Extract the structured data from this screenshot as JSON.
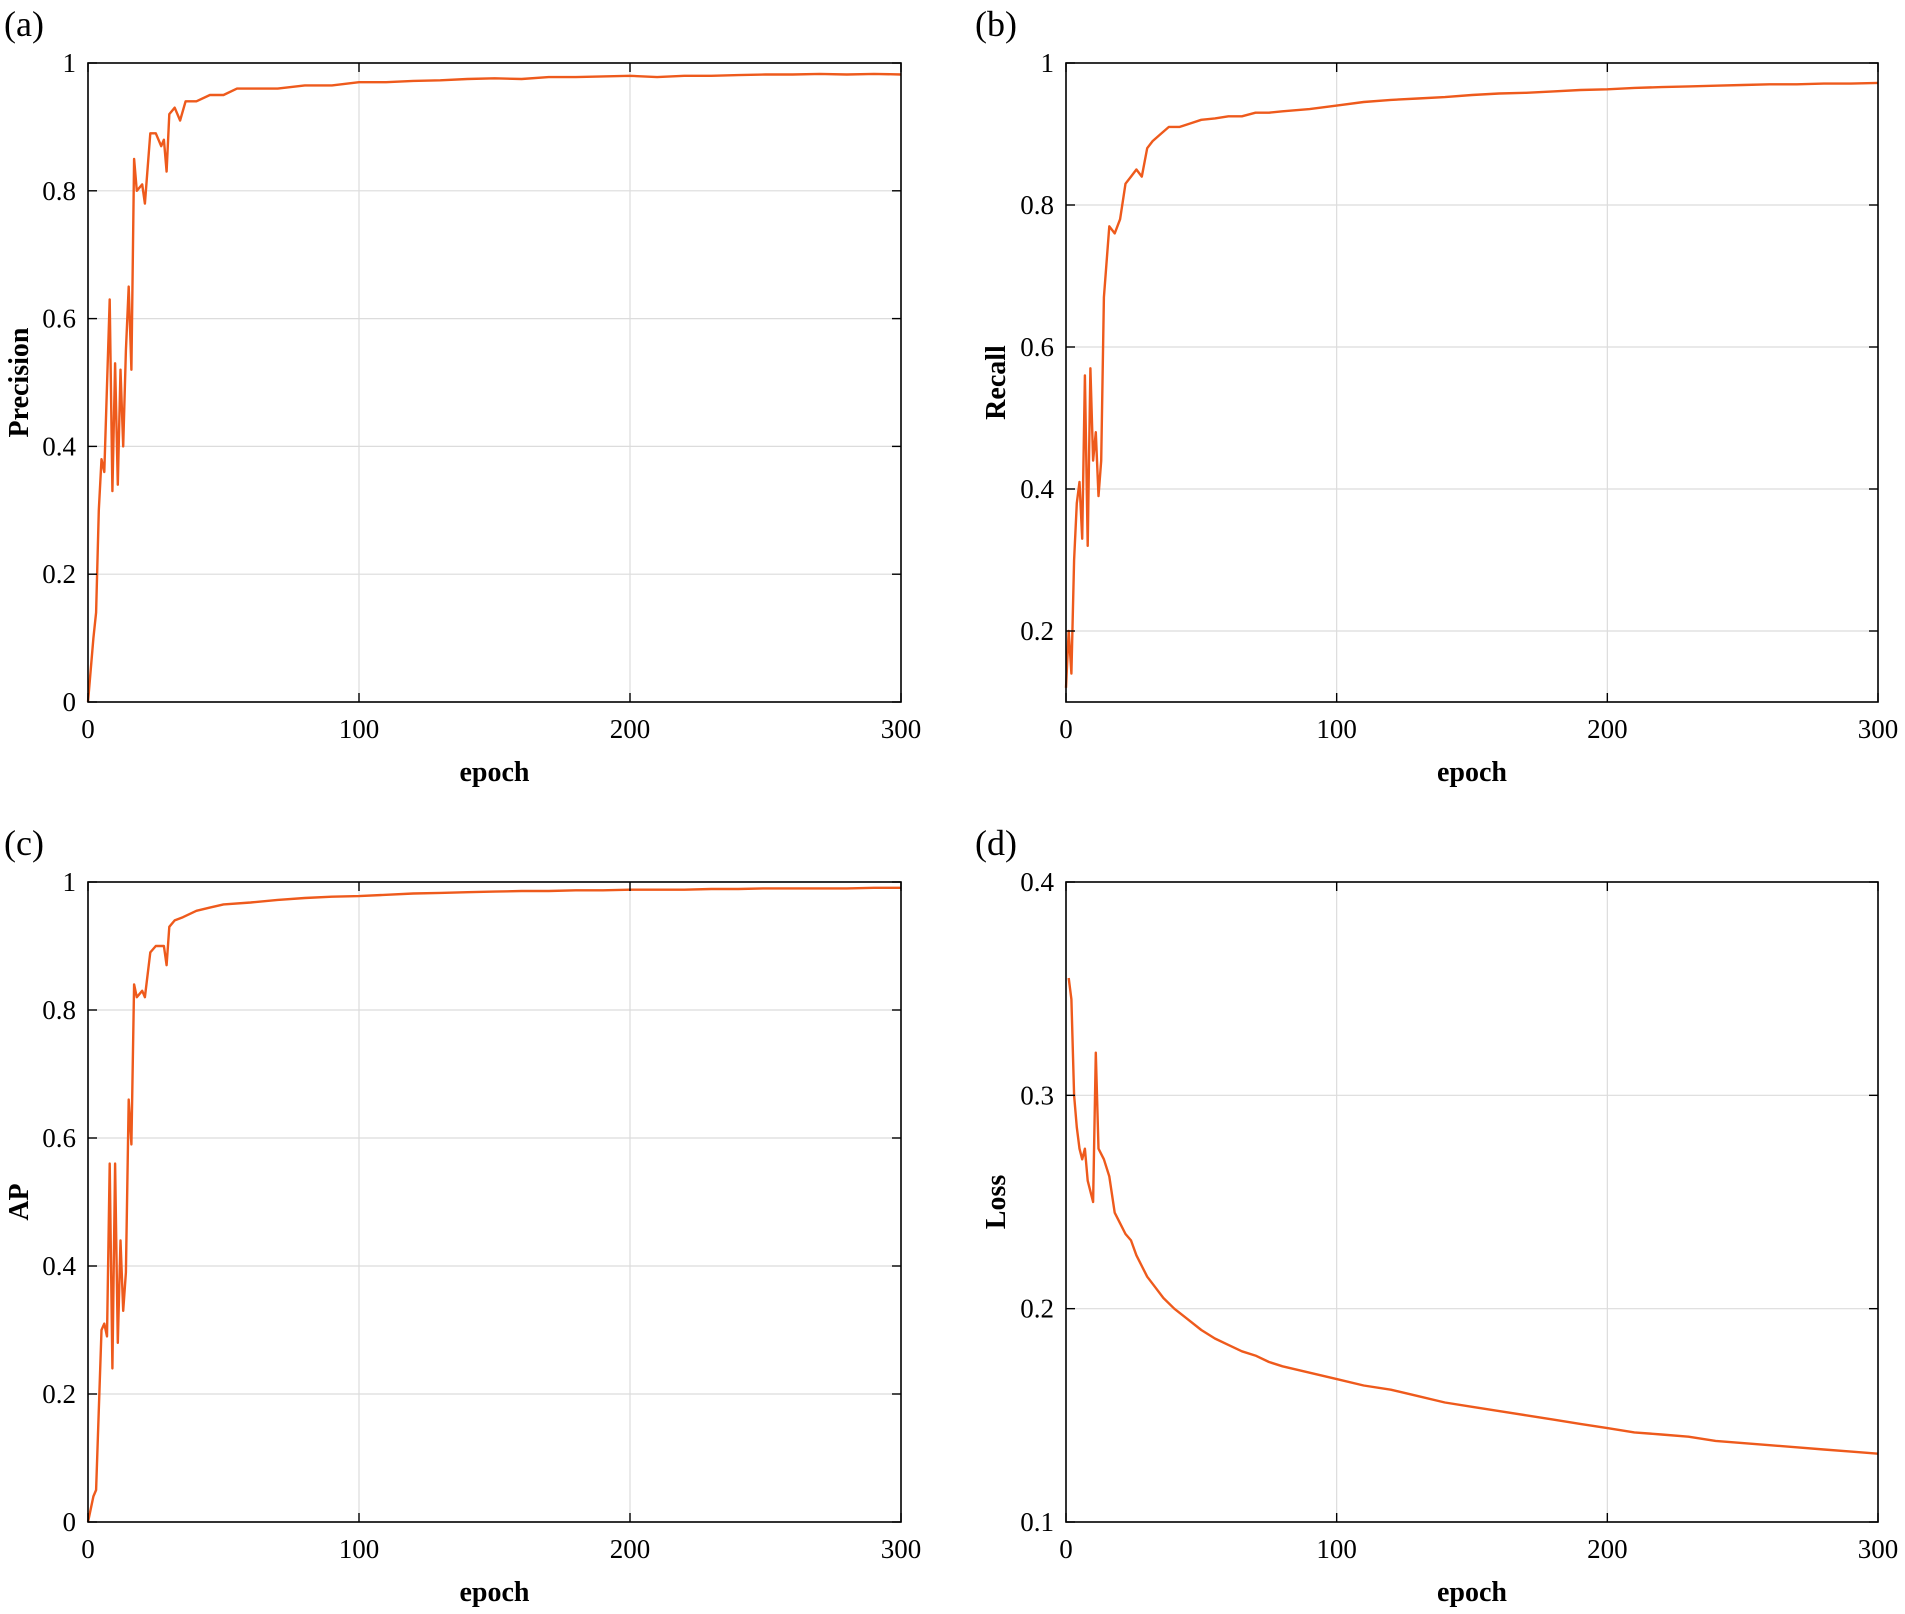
{
  "figure": {
    "colors": {
      "series": "#ee5a1c",
      "grid": "#dcdcdc",
      "axis": "#000000"
    }
  },
  "chart_data": [
    {
      "type": "line",
      "panel": "(a)",
      "xlabel": "epoch",
      "ylabel": "Precision",
      "xlim": [
        0,
        300
      ],
      "ylim": [
        0,
        1
      ],
      "xticks": [
        0,
        100,
        200,
        300
      ],
      "yticks": [
        0,
        0.2,
        0.4,
        0.6,
        0.8,
        1
      ],
      "xtick_labels": [
        "0",
        "100",
        "200",
        "300"
      ],
      "ytick_labels": [
        "0",
        "0.2",
        "0.4",
        "0.6",
        "0.8",
        "1"
      ],
      "grid": true,
      "series": [
        {
          "color": "#ee5a1c",
          "points": [
            [
              0,
              0
            ],
            [
              2,
              0.1
            ],
            [
              3,
              0.14
            ],
            [
              4,
              0.3
            ],
            [
              5,
              0.38
            ],
            [
              6,
              0.36
            ],
            [
              8,
              0.63
            ],
            [
              9,
              0.33
            ],
            [
              10,
              0.53
            ],
            [
              11,
              0.34
            ],
            [
              12,
              0.52
            ],
            [
              13,
              0.4
            ],
            [
              14,
              0.55
            ],
            [
              15,
              0.65
            ],
            [
              16,
              0.52
            ],
            [
              17,
              0.85
            ],
            [
              18,
              0.8
            ],
            [
              20,
              0.81
            ],
            [
              21,
              0.78
            ],
            [
              23,
              0.89
            ],
            [
              25,
              0.89
            ],
            [
              27,
              0.87
            ],
            [
              28,
              0.88
            ],
            [
              29,
              0.83
            ],
            [
              30,
              0.92
            ],
            [
              32,
              0.93
            ],
            [
              34,
              0.91
            ],
            [
              36,
              0.94
            ],
            [
              40,
              0.94
            ],
            [
              45,
              0.95
            ],
            [
              50,
              0.95
            ],
            [
              55,
              0.96
            ],
            [
              60,
              0.96
            ],
            [
              70,
              0.96
            ],
            [
              80,
              0.965
            ],
            [
              90,
              0.965
            ],
            [
              100,
              0.97
            ],
            [
              110,
              0.97
            ],
            [
              120,
              0.972
            ],
            [
              130,
              0.973
            ],
            [
              140,
              0.975
            ],
            [
              150,
              0.976
            ],
            [
              160,
              0.975
            ],
            [
              170,
              0.978
            ],
            [
              180,
              0.978
            ],
            [
              190,
              0.979
            ],
            [
              200,
              0.98
            ],
            [
              210,
              0.978
            ],
            [
              220,
              0.98
            ],
            [
              230,
              0.98
            ],
            [
              240,
              0.981
            ],
            [
              250,
              0.982
            ],
            [
              260,
              0.982
            ],
            [
              270,
              0.983
            ],
            [
              280,
              0.982
            ],
            [
              290,
              0.983
            ],
            [
              300,
              0.982
            ]
          ]
        }
      ]
    },
    {
      "type": "line",
      "panel": "(b)",
      "xlabel": "epoch",
      "ylabel": "Recall",
      "xlim": [
        0,
        300
      ],
      "ylim": [
        0.1,
        1
      ],
      "xticks": [
        0,
        100,
        200,
        300
      ],
      "yticks": [
        0.2,
        0.4,
        0.6,
        0.8,
        1
      ],
      "xtick_labels": [
        "0",
        "100",
        "200",
        "300"
      ],
      "ytick_labels": [
        "0.2",
        "0.4",
        "0.6",
        "0.8",
        "1"
      ],
      "grid": true,
      "series": [
        {
          "color": "#ee5a1c",
          "points": [
            [
              0,
              0.12
            ],
            [
              1,
              0.2
            ],
            [
              2,
              0.14
            ],
            [
              3,
              0.3
            ],
            [
              4,
              0.38
            ],
            [
              5,
              0.41
            ],
            [
              6,
              0.33
            ],
            [
              7,
              0.56
            ],
            [
              8,
              0.32
            ],
            [
              9,
              0.57
            ],
            [
              10,
              0.44
            ],
            [
              11,
              0.48
            ],
            [
              12,
              0.39
            ],
            [
              13,
              0.44
            ],
            [
              14,
              0.67
            ],
            [
              16,
              0.77
            ],
            [
              18,
              0.76
            ],
            [
              20,
              0.78
            ],
            [
              22,
              0.83
            ],
            [
              24,
              0.84
            ],
            [
              26,
              0.85
            ],
            [
              28,
              0.84
            ],
            [
              30,
              0.88
            ],
            [
              32,
              0.89
            ],
            [
              35,
              0.9
            ],
            [
              38,
              0.91
            ],
            [
              42,
              0.91
            ],
            [
              46,
              0.915
            ],
            [
              50,
              0.92
            ],
            [
              55,
              0.922
            ],
            [
              60,
              0.925
            ],
            [
              65,
              0.925
            ],
            [
              70,
              0.93
            ],
            [
              75,
              0.93
            ],
            [
              80,
              0.932
            ],
            [
              90,
              0.935
            ],
            [
              100,
              0.94
            ],
            [
              110,
              0.945
            ],
            [
              120,
              0.948
            ],
            [
              130,
              0.95
            ],
            [
              140,
              0.952
            ],
            [
              150,
              0.955
            ],
            [
              160,
              0.957
            ],
            [
              170,
              0.958
            ],
            [
              180,
              0.96
            ],
            [
              190,
              0.962
            ],
            [
              200,
              0.963
            ],
            [
              210,
              0.965
            ],
            [
              220,
              0.966
            ],
            [
              230,
              0.967
            ],
            [
              240,
              0.968
            ],
            [
              250,
              0.969
            ],
            [
              260,
              0.97
            ],
            [
              270,
              0.97
            ],
            [
              280,
              0.971
            ],
            [
              290,
              0.971
            ],
            [
              300,
              0.972
            ]
          ]
        }
      ]
    },
    {
      "type": "line",
      "panel": "(c)",
      "xlabel": "epoch",
      "ylabel": "AP",
      "xlim": [
        0,
        300
      ],
      "ylim": [
        0,
        1
      ],
      "xticks": [
        0,
        100,
        200,
        300
      ],
      "yticks": [
        0,
        0.2,
        0.4,
        0.6,
        0.8,
        1
      ],
      "xtick_labels": [
        "0",
        "100",
        "200",
        "300"
      ],
      "ytick_labels": [
        "0",
        "0.2",
        "0.4",
        "0.6",
        "0.8",
        "1"
      ],
      "grid": true,
      "series": [
        {
          "color": "#ee5a1c",
          "points": [
            [
              0,
              0
            ],
            [
              2,
              0.04
            ],
            [
              3,
              0.05
            ],
            [
              5,
              0.3
            ],
            [
              6,
              0.31
            ],
            [
              7,
              0.29
            ],
            [
              8,
              0.56
            ],
            [
              9,
              0.24
            ],
            [
              10,
              0.56
            ],
            [
              11,
              0.28
            ],
            [
              12,
              0.44
            ],
            [
              13,
              0.33
            ],
            [
              14,
              0.39
            ],
            [
              15,
              0.66
            ],
            [
              16,
              0.59
            ],
            [
              17,
              0.84
            ],
            [
              18,
              0.82
            ],
            [
              20,
              0.83
            ],
            [
              21,
              0.82
            ],
            [
              23,
              0.89
            ],
            [
              25,
              0.9
            ],
            [
              27,
              0.9
            ],
            [
              28,
              0.9
            ],
            [
              29,
              0.87
            ],
            [
              30,
              0.93
            ],
            [
              32,
              0.94
            ],
            [
              35,
              0.945
            ],
            [
              40,
              0.955
            ],
            [
              45,
              0.96
            ],
            [
              50,
              0.965
            ],
            [
              60,
              0.968
            ],
            [
              70,
              0.972
            ],
            [
              80,
              0.975
            ],
            [
              90,
              0.977
            ],
            [
              100,
              0.978
            ],
            [
              110,
              0.98
            ],
            [
              120,
              0.982
            ],
            [
              130,
              0.983
            ],
            [
              140,
              0.984
            ],
            [
              150,
              0.985
            ],
            [
              160,
              0.986
            ],
            [
              170,
              0.986
            ],
            [
              180,
              0.987
            ],
            [
              190,
              0.987
            ],
            [
              200,
              0.988
            ],
            [
              210,
              0.988
            ],
            [
              220,
              0.988
            ],
            [
              230,
              0.989
            ],
            [
              240,
              0.989
            ],
            [
              250,
              0.99
            ],
            [
              260,
              0.99
            ],
            [
              270,
              0.99
            ],
            [
              280,
              0.99
            ],
            [
              290,
              0.991
            ],
            [
              300,
              0.991
            ]
          ]
        }
      ]
    },
    {
      "type": "line",
      "panel": "(d)",
      "xlabel": "epoch",
      "ylabel": "Loss",
      "xlim": [
        0,
        300
      ],
      "ylim": [
        0.1,
        0.4
      ],
      "xticks": [
        0,
        100,
        200,
        300
      ],
      "yticks": [
        0.1,
        0.2,
        0.3,
        0.4
      ],
      "xtick_labels": [
        "0",
        "100",
        "200",
        "300"
      ],
      "ytick_labels": [
        "0.1",
        "0.2",
        "0.3",
        "0.4"
      ],
      "grid": true,
      "series": [
        {
          "color": "#ee5a1c",
          "points": [
            [
              1,
              0.355
            ],
            [
              2,
              0.345
            ],
            [
              3,
              0.3
            ],
            [
              4,
              0.285
            ],
            [
              5,
              0.275
            ],
            [
              6,
              0.27
            ],
            [
              7,
              0.275
            ],
            [
              8,
              0.26
            ],
            [
              10,
              0.25
            ],
            [
              11,
              0.32
            ],
            [
              12,
              0.275
            ],
            [
              14,
              0.27
            ],
            [
              16,
              0.262
            ],
            [
              18,
              0.245
            ],
            [
              20,
              0.24
            ],
            [
              22,
              0.235
            ],
            [
              24,
              0.232
            ],
            [
              26,
              0.225
            ],
            [
              28,
              0.22
            ],
            [
              30,
              0.215
            ],
            [
              33,
              0.21
            ],
            [
              36,
              0.205
            ],
            [
              40,
              0.2
            ],
            [
              45,
              0.195
            ],
            [
              50,
              0.19
            ],
            [
              55,
              0.186
            ],
            [
              60,
              0.183
            ],
            [
              65,
              0.18
            ],
            [
              70,
              0.178
            ],
            [
              75,
              0.175
            ],
            [
              80,
              0.173
            ],
            [
              90,
              0.17
            ],
            [
              100,
              0.167
            ],
            [
              110,
              0.164
            ],
            [
              120,
              0.162
            ],
            [
              130,
              0.159
            ],
            [
              140,
              0.156
            ],
            [
              150,
              0.154
            ],
            [
              160,
              0.152
            ],
            [
              170,
              0.15
            ],
            [
              180,
              0.148
            ],
            [
              190,
              0.146
            ],
            [
              200,
              0.144
            ],
            [
              210,
              0.142
            ],
            [
              220,
              0.141
            ],
            [
              230,
              0.14
            ],
            [
              240,
              0.138
            ],
            [
              250,
              0.137
            ],
            [
              260,
              0.136
            ],
            [
              270,
              0.135
            ],
            [
              280,
              0.134
            ],
            [
              290,
              0.133
            ],
            [
              300,
              0.132
            ]
          ]
        }
      ]
    }
  ]
}
